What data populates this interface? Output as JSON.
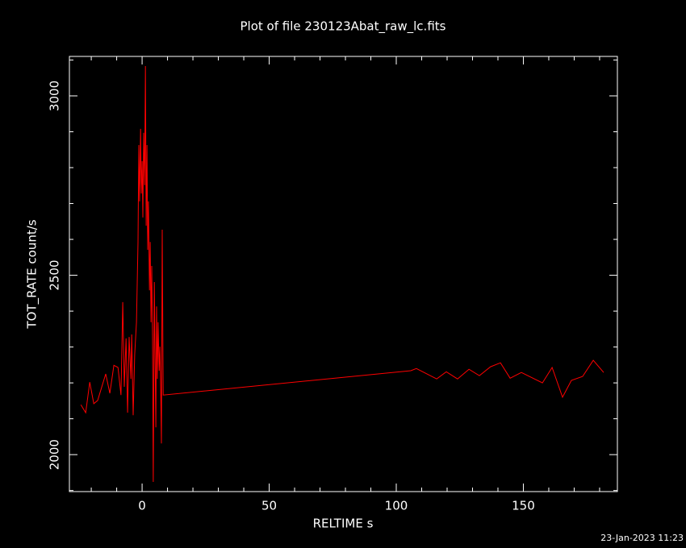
{
  "chart_data": {
    "type": "line",
    "title": "Plot of file 230123Abat_raw_lc.fits",
    "xlabel": "RELTIME  s",
    "ylabel": "TOT_RATE  count/s",
    "footer": "23-Jan-2023 11:23",
    "color": "#ff0000",
    "x": [
      -24.1,
      -22.2,
      -20.6,
      -19.0,
      -17.5,
      -14.3,
      -12.7,
      -11.1,
      -9.5,
      -8.3,
      -7.6,
      -7.0,
      -6.3,
      -5.7,
      -5.1,
      -4.4,
      -4.1,
      -3.5,
      -2.9,
      -2.2,
      -1.6,
      -1.3,
      -1.0,
      -0.6,
      -0.3,
      0,
      0.3,
      0.6,
      1.0,
      1.3,
      1.6,
      1.9,
      2.2,
      2.5,
      2.9,
      3.2,
      3.5,
      3.8,
      4.1,
      4.4,
      4.8,
      5.1,
      5.4,
      5.7,
      6.0,
      6.3,
      6.7,
      7.0,
      7.3,
      7.6,
      7.9,
      8.3,
      105.7,
      107.9,
      115.9,
      119.7,
      124.1,
      128.6,
      132.7,
      137.1,
      141.0,
      144.8,
      149.2,
      157.5,
      161.3,
      165.4,
      168.9,
      173.3,
      177.5,
      181.6
    ],
    "values": [
      2139,
      2117,
      2202,
      2142,
      2151,
      2225,
      2171,
      2249,
      2243,
      2166,
      2425,
      2189,
      2324,
      2117,
      2328,
      2211,
      2335,
      2110,
      2279,
      2369,
      2593,
      2863,
      2706,
      2908,
      2728,
      2818,
      2661,
      2897,
      2751,
      3083,
      2638,
      2863,
      2571,
      2706,
      2458,
      2593,
      2369,
      2526,
      2324,
      1924,
      2481,
      2279,
      2076,
      2413,
      2211,
      2369,
      2234,
      2301,
      2189,
      2031,
      2627,
      2166,
      2234,
      2240,
      2211,
      2231,
      2211,
      2238,
      2220,
      2245,
      2256,
      2213,
      2229,
      2200,
      2243,
      2160,
      2207,
      2218,
      2263,
      2229
    ],
    "xlim": [
      -28.6,
      187
    ],
    "ylim": [
      1897,
      3110
    ],
    "xticks": [
      0,
      50,
      100,
      150
    ],
    "yticks": [
      2000,
      2500,
      3000
    ],
    "xminorticks": [
      -20,
      -10,
      10,
      20,
      30,
      40,
      60,
      70,
      80,
      90,
      110,
      120,
      130,
      140,
      160,
      170,
      180
    ],
    "yminorticks": [
      1900,
      2100,
      2200,
      2300,
      2400,
      2600,
      2700,
      2800,
      2900,
      3100
    ]
  }
}
